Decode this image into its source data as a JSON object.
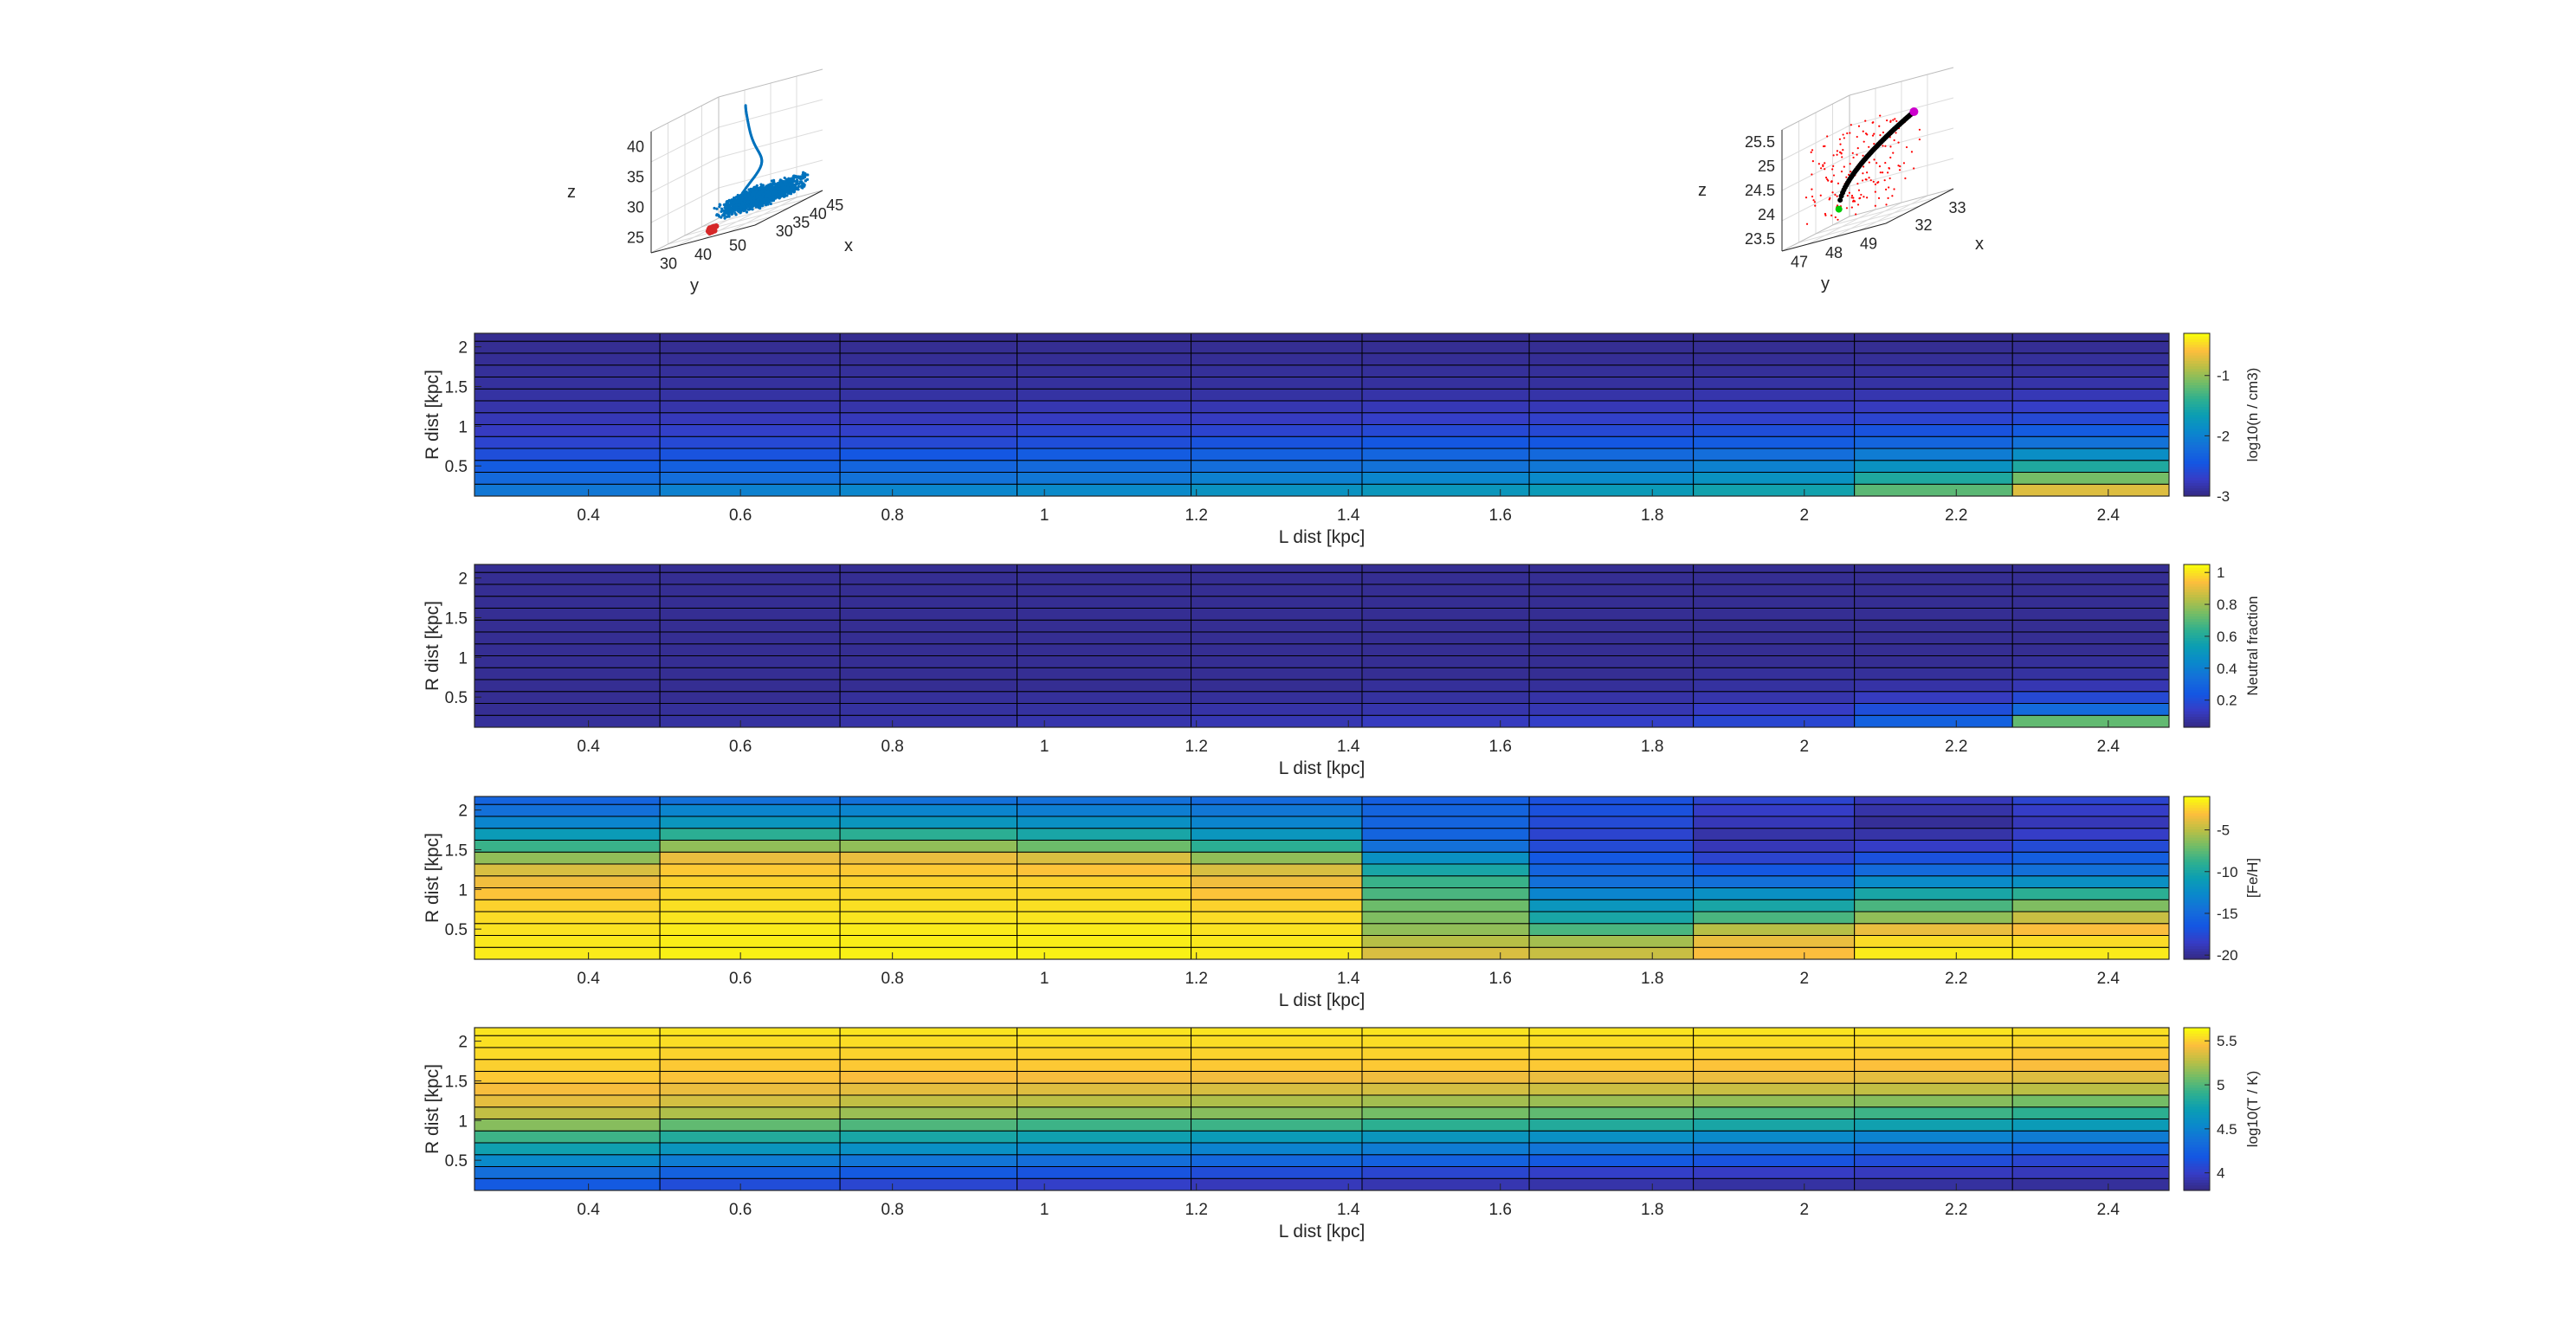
{
  "chart_data": [
    {
      "type": "scatter",
      "subtype": "3d",
      "xlabel": "x",
      "ylabel": "y",
      "zlabel": "z",
      "xticks": [
        30,
        35,
        40,
        45
      ],
      "yticks": [
        30,
        40,
        50
      ],
      "zticks": [
        25,
        30,
        35,
        40
      ],
      "series_colors": [
        "#0072BD",
        "#D62728"
      ]
    },
    {
      "type": "scatter",
      "subtype": "3d",
      "xlabel": "x",
      "ylabel": "y",
      "zlabel": "z",
      "xticks": [
        32,
        33
      ],
      "yticks": [
        47,
        48,
        49
      ],
      "zticks": [
        23.5,
        24,
        24.5,
        25,
        25.5
      ],
      "series_colors": [
        "#000000",
        "#FF0000",
        "#CC00CC",
        "#00CC00"
      ]
    },
    {
      "type": "heatmap",
      "xlabel": "L dist [kpc]",
      "ylabel": "R dist [kpc]",
      "colorbar_label": "log10(n / cm3)",
      "xticks": [
        0.4,
        0.6,
        0.8,
        1,
        1.2,
        1.4,
        1.6,
        1.8,
        2,
        2.2,
        2.4
      ],
      "yticks": [
        0.5,
        1,
        1.5,
        2
      ],
      "colorbar_ticks": [
        -3,
        -2,
        -1
      ],
      "clim": [
        -3,
        -0.3
      ],
      "colormap": "parula",
      "x_edges": [
        0.25,
        0.494,
        0.731,
        0.964,
        1.193,
        1.418,
        1.638,
        1.854,
        2.066,
        2.274,
        2.48
      ],
      "y_edges": [
        0.12,
        0.27,
        0.42,
        0.57,
        0.72,
        0.87,
        1.02,
        1.17,
        1.32,
        1.47,
        1.62,
        1.77,
        1.92,
        2.07,
        2.17
      ],
      "rows_bottom_to_top": [
        [
          -2.1,
          -2.0,
          -1.95,
          -1.9,
          -1.8,
          -1.75,
          -1.7,
          -1.6,
          -1.2,
          -0.7
        ],
        [
          -2.25,
          -2.2,
          -2.15,
          -2.1,
          -2.0,
          -1.95,
          -1.9,
          -1.8,
          -1.5,
          -1.1
        ],
        [
          -2.4,
          -2.35,
          -2.3,
          -2.25,
          -2.2,
          -2.15,
          -2.1,
          -2.0,
          -1.8,
          -1.5
        ],
        [
          -2.55,
          -2.5,
          -2.45,
          -2.4,
          -2.35,
          -2.3,
          -2.25,
          -2.2,
          -2.05,
          -1.85
        ],
        [
          -2.65,
          -2.6,
          -2.6,
          -2.55,
          -2.5,
          -2.45,
          -2.45,
          -2.4,
          -2.3,
          -2.15
        ],
        [
          -2.75,
          -2.7,
          -2.7,
          -2.65,
          -2.65,
          -2.6,
          -2.6,
          -2.55,
          -2.5,
          -2.4
        ],
        [
          -2.8,
          -2.78,
          -2.78,
          -2.75,
          -2.75,
          -2.72,
          -2.7,
          -2.68,
          -2.65,
          -2.6
        ],
        [
          -2.85,
          -2.85,
          -2.85,
          -2.82,
          -2.82,
          -2.8,
          -2.8,
          -2.78,
          -2.76,
          -2.72
        ],
        [
          -2.88,
          -2.88,
          -2.88,
          -2.88,
          -2.88,
          -2.86,
          -2.86,
          -2.84,
          -2.83,
          -2.8
        ],
        [
          -2.9,
          -2.9,
          -2.9,
          -2.9,
          -2.9,
          -2.9,
          -2.9,
          -2.88,
          -2.88,
          -2.86
        ],
        [
          -2.92,
          -2.92,
          -2.92,
          -2.92,
          -2.92,
          -2.92,
          -2.92,
          -2.92,
          -2.9,
          -2.9
        ],
        [
          -2.94,
          -2.94,
          -2.94,
          -2.94,
          -2.94,
          -2.94,
          -2.94,
          -2.94,
          -2.93,
          -2.92
        ],
        [
          -2.95,
          -2.95,
          -2.95,
          -2.95,
          -2.95,
          -2.95,
          -2.95,
          -2.95,
          -2.95,
          -2.94
        ],
        [
          -2.96,
          -2.96,
          -2.96,
          -2.96,
          -2.96,
          -2.96,
          -2.96,
          -2.96,
          -2.96,
          -2.95
        ]
      ]
    },
    {
      "type": "heatmap",
      "xlabel": "L dist [kpc]",
      "ylabel": "R dist [kpc]",
      "colorbar_label": "Neutral fraction",
      "xticks": [
        0.4,
        0.6,
        0.8,
        1,
        1.2,
        1.4,
        1.6,
        1.8,
        2,
        2.2,
        2.4
      ],
      "yticks": [
        0.5,
        1,
        1.5,
        2
      ],
      "colorbar_ticks": [
        0.2,
        0.4,
        0.6,
        0.8,
        1
      ],
      "clim": [
        0.03,
        1.05
      ],
      "colormap": "parula",
      "x_edges": [
        0.25,
        0.494,
        0.731,
        0.964,
        1.193,
        1.418,
        1.638,
        1.854,
        2.066,
        2.274,
        2.48
      ],
      "y_edges": [
        0.12,
        0.27,
        0.42,
        0.57,
        0.72,
        0.87,
        1.02,
        1.17,
        1.32,
        1.47,
        1.62,
        1.77,
        1.92,
        2.07,
        2.17
      ],
      "rows_bottom_to_top": [
        [
          0.06,
          0.07,
          0.08,
          0.09,
          0.1,
          0.12,
          0.14,
          0.17,
          0.28,
          0.72
        ],
        [
          0.05,
          0.06,
          0.07,
          0.07,
          0.08,
          0.09,
          0.1,
          0.13,
          0.2,
          0.32
        ],
        [
          0.05,
          0.05,
          0.06,
          0.06,
          0.06,
          0.07,
          0.08,
          0.09,
          0.12,
          0.18
        ],
        [
          0.05,
          0.05,
          0.05,
          0.05,
          0.05,
          0.06,
          0.06,
          0.07,
          0.08,
          0.1
        ],
        [
          0.05,
          0.05,
          0.05,
          0.05,
          0.05,
          0.05,
          0.05,
          0.06,
          0.06,
          0.07
        ],
        [
          0.05,
          0.05,
          0.05,
          0.05,
          0.05,
          0.05,
          0.05,
          0.05,
          0.05,
          0.06
        ],
        [
          0.05,
          0.05,
          0.05,
          0.05,
          0.05,
          0.05,
          0.05,
          0.05,
          0.05,
          0.05
        ],
        [
          0.05,
          0.05,
          0.05,
          0.05,
          0.05,
          0.05,
          0.05,
          0.05,
          0.05,
          0.05
        ],
        [
          0.05,
          0.05,
          0.05,
          0.05,
          0.05,
          0.05,
          0.05,
          0.05,
          0.05,
          0.05
        ],
        [
          0.05,
          0.05,
          0.05,
          0.05,
          0.05,
          0.05,
          0.05,
          0.05,
          0.05,
          0.05
        ],
        [
          0.05,
          0.05,
          0.05,
          0.05,
          0.05,
          0.05,
          0.05,
          0.05,
          0.05,
          0.05
        ],
        [
          0.05,
          0.05,
          0.05,
          0.05,
          0.05,
          0.05,
          0.05,
          0.05,
          0.05,
          0.05
        ],
        [
          0.05,
          0.05,
          0.05,
          0.05,
          0.05,
          0.05,
          0.05,
          0.05,
          0.05,
          0.05
        ],
        [
          0.05,
          0.05,
          0.05,
          0.05,
          0.05,
          0.05,
          0.05,
          0.05,
          0.05,
          0.05
        ]
      ]
    },
    {
      "type": "heatmap",
      "xlabel": "L dist [kpc]",
      "ylabel": "R dist [kpc]",
      "colorbar_label": "[Fe/H]",
      "xticks": [
        0.4,
        0.6,
        0.8,
        1,
        1.2,
        1.4,
        1.6,
        1.8,
        2,
        2.2,
        2.4
      ],
      "yticks": [
        0.5,
        1,
        1.5,
        2
      ],
      "colorbar_ticks": [
        -20,
        -15,
        -10,
        -5
      ],
      "clim": [
        -20.5,
        -1
      ],
      "colormap": "parula",
      "x_edges": [
        0.25,
        0.494,
        0.731,
        0.964,
        1.193,
        1.418,
        1.638,
        1.854,
        2.066,
        2.274,
        2.48
      ],
      "y_edges": [
        0.12,
        0.27,
        0.42,
        0.57,
        0.72,
        0.87,
        1.02,
        1.17,
        1.32,
        1.47,
        1.62,
        1.77,
        1.92,
        2.07,
        2.17
      ],
      "rows_bottom_to_top": [
        [
          -1.5,
          -1.3,
          -1.3,
          -1.3,
          -1.5,
          -4.0,
          -4.5,
          -3.0,
          -1.5,
          -1.5
        ],
        [
          -1.6,
          -1.4,
          -1.4,
          -1.4,
          -1.6,
          -5.0,
          -5.5,
          -3.5,
          -2.0,
          -2.0
        ],
        [
          -1.8,
          -1.5,
          -1.5,
          -1.5,
          -1.8,
          -6.0,
          -8.0,
          -5.0,
          -3.5,
          -3.0
        ],
        [
          -2.0,
          -1.7,
          -1.7,
          -1.7,
          -2.0,
          -6.5,
          -10.0,
          -8.0,
          -6.0,
          -4.5
        ],
        [
          -2.3,
          -1.9,
          -1.9,
          -1.9,
          -2.3,
          -7.0,
          -11.5,
          -10.0,
          -8.0,
          -6.5
        ],
        [
          -2.8,
          -2.1,
          -2.1,
          -2.1,
          -2.8,
          -8.0,
          -13.0,
          -12.0,
          -10.0,
          -9.0
        ],
        [
          -3.3,
          -2.3,
          -2.3,
          -2.3,
          -3.3,
          -8.5,
          -14.5,
          -14.5,
          -12.5,
          -12.0
        ],
        [
          -4.0,
          -2.6,
          -2.6,
          -2.8,
          -4.0,
          -10.0,
          -15.5,
          -16.5,
          -15.0,
          -14.5
        ],
        [
          -6.0,
          -3.5,
          -3.5,
          -4.0,
          -6.0,
          -12.0,
          -16.5,
          -18.0,
          -17.0,
          -16.0
        ],
        [
          -8.5,
          -6.0,
          -6.0,
          -7.0,
          -9.0,
          -14.5,
          -17.5,
          -19.0,
          -18.5,
          -17.5
        ],
        [
          -11.0,
          -9.0,
          -9.0,
          -10.0,
          -11.5,
          -15.5,
          -18.0,
          -19.5,
          -19.5,
          -18.5
        ],
        [
          -13.0,
          -11.5,
          -11.5,
          -12.0,
          -13.0,
          -15.5,
          -17.5,
          -19.0,
          -20.0,
          -19.0
        ],
        [
          -14.5,
          -13.0,
          -13.0,
          -13.5,
          -14.0,
          -15.5,
          -17.0,
          -18.5,
          -19.5,
          -18.5
        ],
        [
          -15.5,
          -14.5,
          -14.5,
          -14.5,
          -15.0,
          -16.0,
          -17.0,
          -18.0,
          -19.0,
          -18.0
        ]
      ]
    },
    {
      "type": "heatmap",
      "xlabel": "L dist [kpc]",
      "ylabel": "R dist [kpc]",
      "colorbar_label": "log10(T / K)",
      "xticks": [
        0.4,
        0.6,
        0.8,
        1,
        1.2,
        1.4,
        1.6,
        1.8,
        2,
        2.2,
        2.4
      ],
      "yticks": [
        0.5,
        1,
        1.5,
        2
      ],
      "colorbar_ticks": [
        4,
        4.5,
        5,
        5.5
      ],
      "clim": [
        3.8,
        5.65
      ],
      "colormap": "parula",
      "x_edges": [
        0.25,
        0.494,
        0.731,
        0.964,
        1.193,
        1.418,
        1.638,
        1.854,
        2.066,
        2.274,
        2.48
      ],
      "y_edges": [
        0.12,
        0.27,
        0.42,
        0.57,
        0.72,
        0.87,
        1.02,
        1.17,
        1.32,
        1.47,
        1.62,
        1.77,
        1.92,
        2.07,
        2.17
      ],
      "rows_bottom_to_top": [
        [
          4.2,
          4.1,
          4.05,
          4.0,
          3.95,
          3.92,
          3.9,
          3.88,
          3.87,
          3.86
        ],
        [
          4.35,
          4.25,
          4.2,
          4.15,
          4.1,
          4.05,
          4.0,
          3.98,
          3.96,
          3.95
        ],
        [
          4.55,
          4.45,
          4.4,
          4.35,
          4.3,
          4.25,
          4.2,
          4.15,
          4.1,
          4.05
        ],
        [
          4.75,
          4.65,
          4.6,
          4.55,
          4.5,
          4.45,
          4.4,
          4.35,
          4.3,
          4.25
        ],
        [
          4.95,
          4.85,
          4.8,
          4.75,
          4.7,
          4.65,
          4.6,
          4.55,
          4.5,
          4.45
        ],
        [
          5.15,
          5.05,
          5.0,
          4.95,
          4.95,
          4.9,
          4.85,
          4.8,
          4.75,
          4.7
        ],
        [
          5.3,
          5.25,
          5.2,
          5.15,
          5.15,
          5.1,
          5.05,
          5.0,
          4.95,
          4.9
        ],
        [
          5.4,
          5.35,
          5.3,
          5.28,
          5.25,
          5.22,
          5.2,
          5.18,
          5.15,
          5.1
        ],
        [
          5.45,
          5.42,
          5.4,
          5.38,
          5.36,
          5.35,
          5.33,
          5.32,
          5.3,
          5.28
        ],
        [
          5.5,
          5.48,
          5.46,
          5.45,
          5.44,
          5.43,
          5.42,
          5.42,
          5.4,
          5.38
        ],
        [
          5.52,
          5.5,
          5.5,
          5.5,
          5.5,
          5.5,
          5.5,
          5.48,
          5.47,
          5.46
        ],
        [
          5.55,
          5.53,
          5.53,
          5.53,
          5.53,
          5.53,
          5.53,
          5.53,
          5.52,
          5.5
        ],
        [
          5.57,
          5.56,
          5.56,
          5.56,
          5.56,
          5.56,
          5.56,
          5.56,
          5.55,
          5.54
        ],
        [
          5.58,
          5.58,
          5.58,
          5.58,
          5.58,
          5.58,
          5.58,
          5.58,
          5.58,
          5.57
        ]
      ]
    }
  ]
}
